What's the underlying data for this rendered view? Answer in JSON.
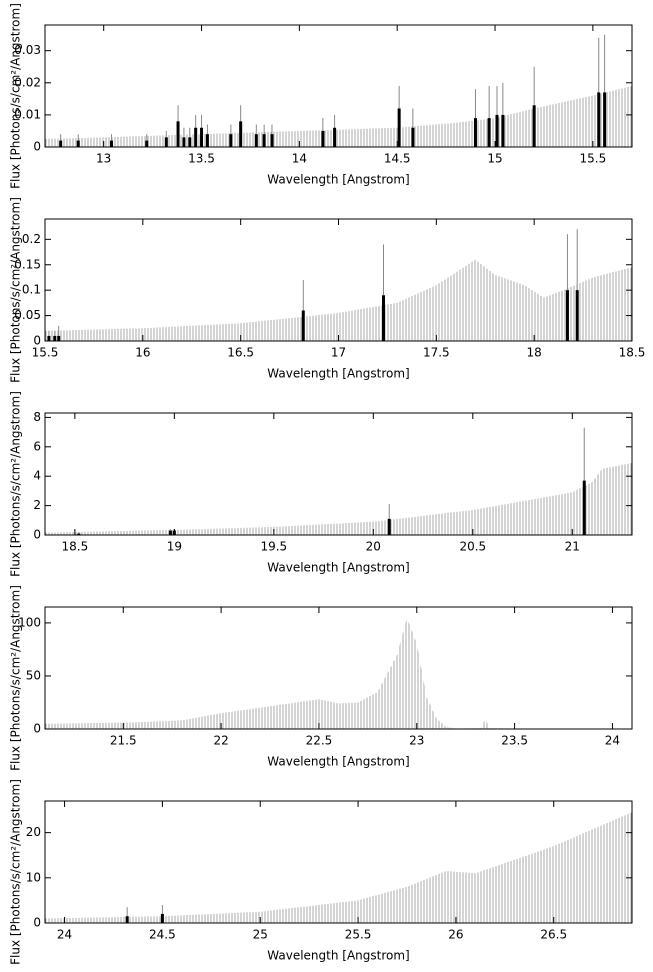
{
  "chart_data": [
    {
      "type": "errorbar",
      "x_label": "Wavelength [Angstrom]",
      "y_label": "Flux [Photons/s/cm²/Angstrom]",
      "xlim": [
        12.7,
        15.7
      ],
      "xticks": [
        13,
        13.5,
        14,
        14.5,
        15,
        15.5
      ],
      "ylim": [
        0,
        0.038
      ],
      "yticks": [
        0,
        0.01,
        0.02,
        0.03
      ],
      "x": [
        12.7,
        13,
        13.5,
        14,
        14.5,
        14.8,
        15,
        15.2,
        15.5,
        15.7
      ],
      "values": [
        0.0025,
        0.003,
        0.004,
        0.005,
        0.006,
        0.0075,
        0.009,
        0.012,
        0.016,
        0.019
      ],
      "lines": {
        "x": [
          12.78,
          12.87,
          13.04,
          13.22,
          13.32,
          13.38,
          13.41,
          13.44,
          13.47,
          13.5,
          13.53,
          13.65,
          13.7,
          13.78,
          13.82,
          13.86,
          14.12,
          14.18,
          14.51,
          14.58,
          14.9,
          14.97,
          15.01,
          15.04,
          15.2,
          15.53,
          15.56
        ],
        "values": [
          0.002,
          0.002,
          0.002,
          0.002,
          0.003,
          0.008,
          0.003,
          0.003,
          0.006,
          0.006,
          0.004,
          0.004,
          0.008,
          0.004,
          0.004,
          0.004,
          0.005,
          0.006,
          0.012,
          0.006,
          0.009,
          0.009,
          0.01,
          0.01,
          0.013,
          0.017,
          0.017
        ],
        "upper": [
          0.004,
          0.004,
          0.004,
          0.004,
          0.005,
          0.013,
          0.006,
          0.006,
          0.01,
          0.01,
          0.007,
          0.007,
          0.013,
          0.007,
          0.007,
          0.007,
          0.009,
          0.01,
          0.019,
          0.012,
          0.018,
          0.019,
          0.019,
          0.02,
          0.025,
          0.034,
          0.035
        ]
      }
    },
    {
      "type": "errorbar",
      "x_label": "Wavelength [Angstrom]",
      "y_label": "Flux [Photons/s/cm²/Angstrom]",
      "xlim": [
        15.5,
        18.5
      ],
      "xticks": [
        15.5,
        16,
        16.5,
        17,
        17.5,
        18,
        18.5
      ],
      "ylim": [
        0,
        0.24
      ],
      "yticks": [
        0,
        0.05,
        0.1,
        0.15,
        0.2
      ],
      "x": [
        15.5,
        16,
        16.5,
        17,
        17.3,
        17.5,
        17.7,
        17.8,
        17.95,
        18.05,
        18.15,
        18.3,
        18.5
      ],
      "values": [
        0.02,
        0.025,
        0.035,
        0.055,
        0.075,
        0.11,
        0.16,
        0.13,
        0.11,
        0.085,
        0.1,
        0.125,
        0.145
      ],
      "lines": {
        "x": [
          15.52,
          15.55,
          15.57,
          16.82,
          17.23,
          18.17,
          18.22
        ],
        "values": [
          0.01,
          0.01,
          0.01,
          0.06,
          0.09,
          0.1,
          0.1
        ],
        "upper": [
          0.02,
          0.02,
          0.03,
          0.12,
          0.19,
          0.21,
          0.22
        ]
      }
    },
    {
      "type": "errorbar",
      "x_label": "Wavelength [Angstrom]",
      "y_label": "Flux [Photons/s/cm²/Angstrom]",
      "xlim": [
        18.35,
        21.3
      ],
      "xticks": [
        18.5,
        19,
        19.5,
        20,
        20.5,
        21
      ],
      "ylim": [
        0,
        8.3
      ],
      "yticks": [
        0,
        2,
        4,
        6,
        8
      ],
      "x": [
        18.35,
        18.5,
        19,
        19.5,
        20,
        20.5,
        21,
        21.1,
        21.15,
        21.3
      ],
      "values": [
        0.15,
        0.2,
        0.35,
        0.55,
        0.9,
        1.7,
        2.9,
        3.6,
        4.5,
        4.9
      ],
      "lines": {
        "x": [
          18.52,
          18.98,
          19.0,
          20.08,
          21.06
        ],
        "values": [
          0.1,
          0.3,
          0.3,
          1.1,
          3.7
        ],
        "upper": [
          0.2,
          0.4,
          0.4,
          2.1,
          7.3
        ]
      }
    },
    {
      "type": "errorbar",
      "x_label": "Wavelength [Angstrom]",
      "y_label": "Flux [Photons/s/cm²/Angstrom]",
      "xlim": [
        21.1,
        24.1
      ],
      "xticks": [
        21.5,
        22,
        22.5,
        23,
        23.5,
        24
      ],
      "ylim": [
        0,
        115
      ],
      "yticks": [
        0,
        50,
        100
      ],
      "x": [
        21.1,
        21.5,
        21.8,
        22,
        22.2,
        22.5,
        22.6,
        22.7,
        22.8,
        22.9,
        22.95,
        23,
        23.05,
        23.1,
        23.15,
        23.2,
        23.33,
        23.35,
        23.37,
        23.5,
        24.1
      ],
      "values": [
        5,
        6,
        8,
        15,
        20,
        28,
        24,
        25,
        35,
        70,
        105,
        80,
        30,
        10,
        2,
        0.5,
        1,
        10,
        1,
        0.3,
        0.2
      ]
    },
    {
      "type": "errorbar",
      "x_label": "Wavelength [Angstrom]",
      "y_label": "Flux [Photons/s/cm²/Angstrom]",
      "xlim": [
        23.9,
        26.9
      ],
      "xticks": [
        24,
        24.5,
        25,
        25.5,
        26,
        26.5
      ],
      "ylim": [
        0,
        27
      ],
      "yticks": [
        0,
        10,
        20
      ],
      "x": [
        23.9,
        24.5,
        25,
        25.5,
        25.75,
        25.95,
        26.1,
        26.3,
        26.5,
        26.9
      ],
      "values": [
        1,
        1.5,
        2.5,
        5,
        8,
        11.5,
        11,
        14,
        17,
        24.5
      ],
      "lines": {
        "x": [
          24.32,
          24.5
        ],
        "values": [
          1.5,
          2
        ],
        "upper": [
          3.5,
          4
        ]
      }
    }
  ]
}
